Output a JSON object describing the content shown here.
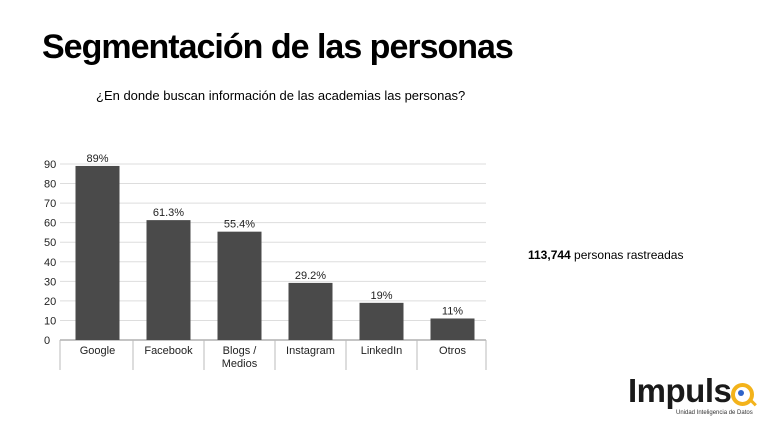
{
  "slide": {
    "title": "Segmentación de las personas",
    "subtitle": "¿En donde buscan información de las academias las personas?",
    "tracked_count": "113,744",
    "tracked_label": " personas rastreadas"
  },
  "logo": {
    "word": "Impuls",
    "tagline": "Unidad Inteligencia de Datos",
    "colors": {
      "ring": "#f3b31b",
      "dot": "#2f63c9"
    }
  },
  "chart_data": {
    "type": "bar",
    "categories": [
      "Google",
      "Facebook",
      "Blogs / Medios",
      "Instagram",
      "LinkedIn",
      "Otros"
    ],
    "category_lines": [
      [
        "Google"
      ],
      [
        "Facebook"
      ],
      [
        "Blogs /",
        "Medios"
      ],
      [
        "Instagram"
      ],
      [
        "LinkedIn"
      ],
      [
        "Otros"
      ]
    ],
    "values": [
      89,
      61.3,
      55.4,
      29.2,
      19,
      11
    ],
    "data_labels": [
      "89%",
      "61.3%",
      "55.4%",
      "29.2%",
      "19%",
      "11%"
    ],
    "yticks": [
      "0",
      "10",
      "20",
      "30",
      "40",
      "50",
      "60",
      "70",
      "80",
      "90"
    ],
    "ylim": [
      0,
      90
    ],
    "grid": true,
    "bar_color": "#4a4a4a",
    "title": "",
    "xlabel": "",
    "ylabel": ""
  }
}
